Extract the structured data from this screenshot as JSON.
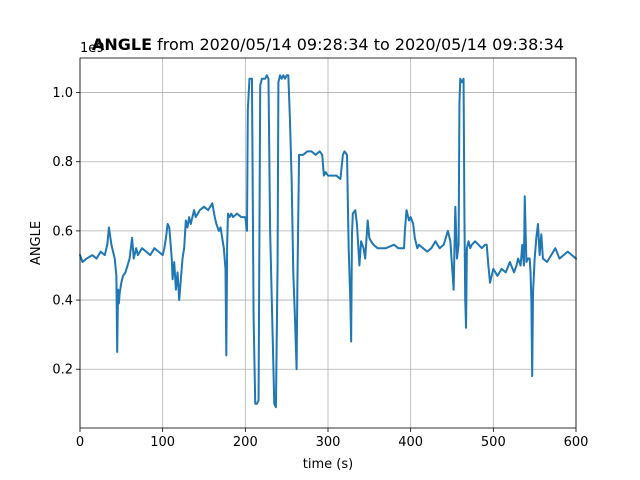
{
  "chart_data": {
    "type": "line",
    "title_bold": "ANGLE",
    "title_rest": " from 2020/05/14 09:28:34 to 2020/05/14 09:38:34",
    "xlabel": "time (s)",
    "ylabel": "ANGLE",
    "y_offset_label": "1e9",
    "xlim": [
      0,
      600
    ],
    "ylim": [
      0.03,
      1.1
    ],
    "x_ticks": [
      0,
      100,
      200,
      300,
      400,
      500,
      600
    ],
    "x_tick_labels": [
      "0",
      "100",
      "200",
      "300",
      "400",
      "500",
      "600"
    ],
    "y_ticks": [
      0.2,
      0.4,
      0.6,
      0.8,
      1.0
    ],
    "y_tick_labels": [
      "0.2",
      "0.4",
      "0.6",
      "0.8",
      "1.0"
    ],
    "grid": true,
    "line_color": "#1f77b4",
    "series": [
      {
        "x": [
          0,
          3,
          8,
          15,
          20,
          25,
          30,
          33,
          35,
          38,
          42,
          44,
          45,
          46,
          47,
          48,
          50,
          52,
          55,
          60,
          63,
          65,
          68,
          70,
          75,
          80,
          85,
          90,
          95,
          100,
          102,
          104,
          106,
          108,
          110,
          111,
          112,
          114,
          116,
          118,
          120,
          122,
          124,
          126,
          128,
          130,
          132,
          134,
          138,
          140,
          145,
          150,
          155,
          160,
          163,
          165,
          168,
          170,
          172,
          174,
          176,
          177,
          178,
          179,
          181,
          183,
          185,
          190,
          195,
          200,
          202,
          203,
          205,
          208,
          210,
          212,
          214,
          216,
          218,
          220,
          222,
          224,
          226,
          228,
          230,
          232,
          235,
          237,
          239,
          240,
          242,
          244,
          246,
          248,
          250,
          252,
          254,
          256,
          258,
          260,
          262,
          263,
          265,
          270,
          275,
          280,
          285,
          290,
          293,
          295,
          297,
          300,
          305,
          310,
          315,
          318,
          320,
          323,
          325,
          327,
          328,
          329,
          330,
          333,
          335,
          338,
          340,
          343,
          345,
          348,
          350,
          352,
          355,
          360,
          365,
          370,
          380,
          385,
          390,
          392,
          393,
          395,
          398,
          400,
          403,
          405,
          408,
          410,
          415,
          420,
          425,
          430,
          435,
          440,
          445,
          448,
          450,
          452,
          454,
          456,
          458,
          459,
          460,
          462,
          464,
          465,
          466,
          467,
          468,
          470,
          472,
          474,
          478,
          482,
          486,
          490,
          492,
          494,
          496,
          500,
          505,
          510,
          515,
          520,
          525,
          528,
          530,
          533,
          535,
          537,
          538,
          540,
          542,
          544,
          545,
          546,
          547,
          548,
          549,
          550,
          552,
          554,
          556,
          558,
          560,
          565,
          570,
          575,
          580,
          585,
          590,
          595,
          600
        ],
        "y": [
          0.53,
          0.51,
          0.52,
          0.53,
          0.52,
          0.54,
          0.53,
          0.56,
          0.61,
          0.56,
          0.52,
          0.47,
          0.25,
          0.43,
          0.39,
          0.42,
          0.45,
          0.47,
          0.48,
          0.52,
          0.58,
          0.52,
          0.55,
          0.53,
          0.55,
          0.54,
          0.53,
          0.55,
          0.54,
          0.53,
          0.55,
          0.58,
          0.62,
          0.61,
          0.55,
          0.52,
          0.46,
          0.51,
          0.43,
          0.48,
          0.4,
          0.46,
          0.52,
          0.55,
          0.63,
          0.61,
          0.64,
          0.62,
          0.66,
          0.64,
          0.66,
          0.67,
          0.66,
          0.68,
          0.64,
          0.62,
          0.6,
          0.61,
          0.58,
          0.55,
          0.49,
          0.24,
          0.56,
          0.65,
          0.64,
          0.65,
          0.64,
          0.65,
          0.64,
          0.64,
          0.6,
          0.95,
          1.04,
          1.04,
          0.35,
          0.1,
          0.1,
          0.11,
          1.02,
          1.04,
          1.04,
          1.04,
          1.05,
          1.04,
          0.6,
          0.4,
          0.1,
          0.09,
          0.5,
          1.03,
          1.05,
          1.04,
          1.05,
          1.04,
          1.05,
          1.05,
          0.92,
          0.75,
          0.48,
          0.35,
          0.2,
          0.45,
          0.82,
          0.82,
          0.83,
          0.83,
          0.82,
          0.83,
          0.82,
          0.76,
          0.77,
          0.76,
          0.76,
          0.76,
          0.75,
          0.82,
          0.83,
          0.82,
          0.55,
          0.4,
          0.28,
          0.59,
          0.65,
          0.66,
          0.62,
          0.5,
          0.57,
          0.55,
          0.52,
          0.63,
          0.58,
          0.57,
          0.56,
          0.55,
          0.55,
          0.55,
          0.56,
          0.55,
          0.55,
          0.55,
          0.6,
          0.66,
          0.63,
          0.64,
          0.62,
          0.58,
          0.55,
          0.56,
          0.55,
          0.54,
          0.55,
          0.57,
          0.55,
          0.56,
          0.6,
          0.57,
          0.5,
          0.43,
          0.67,
          0.52,
          0.56,
          0.97,
          1.04,
          1.03,
          1.04,
          0.65,
          0.4,
          0.32,
          0.55,
          0.57,
          0.55,
          0.56,
          0.57,
          0.56,
          0.55,
          0.56,
          0.56,
          0.5,
          0.45,
          0.49,
          0.47,
          0.49,
          0.48,
          0.51,
          0.48,
          0.5,
          0.52,
          0.5,
          0.56,
          0.5,
          0.7,
          0.51,
          0.52,
          0.52,
          0.48,
          0.4,
          0.18,
          0.42,
          0.47,
          0.52,
          0.58,
          0.62,
          0.53,
          0.59,
          0.52,
          0.51,
          0.53,
          0.55,
          0.52,
          0.53,
          0.54,
          0.53,
          0.52
        ]
      }
    ]
  }
}
